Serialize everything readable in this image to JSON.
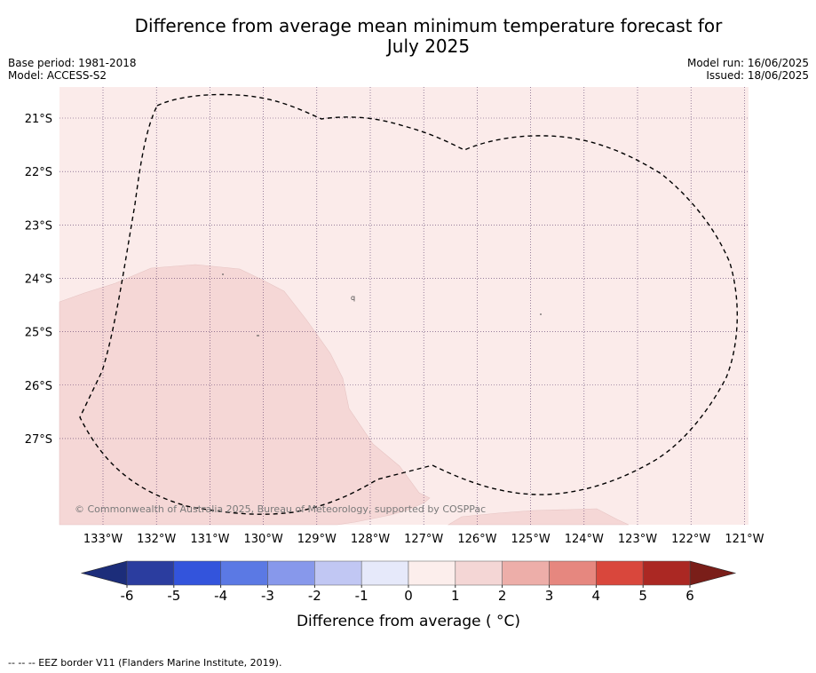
{
  "title": {
    "line1": "Difference from average mean minimum temperature forecast for",
    "line2": "July 2025"
  },
  "meta_left": {
    "base_period": "Base period: 1981-2018",
    "model": "Model: ACCESS-S2"
  },
  "meta_right": {
    "model_run": "Model run: 16/06/2025",
    "issued": "Issued: 18/06/2025"
  },
  "map": {
    "lon_ticks": [
      "133°W",
      "132°W",
      "131°W",
      "130°W",
      "129°W",
      "128°W",
      "127°W",
      "126°W",
      "125°W",
      "124°W",
      "123°W",
      "122°W",
      "121°W"
    ],
    "lat_ticks": [
      "21°S",
      "22°S",
      "23°S",
      "24°S",
      "25°S",
      "26°S",
      "27°S"
    ],
    "lon_values": [
      -133,
      -132,
      -131,
      -130,
      -129,
      -128,
      -127,
      -126,
      -125,
      -124,
      -123,
      -122,
      -121
    ],
    "lat_values": [
      -21,
      -22,
      -23,
      -24,
      -25,
      -26,
      -27
    ],
    "copyright": "© Commonwealth of Australia 2025, Bureau of Meteorology, supported by COSPPac",
    "region_colors": {
      "base_1_to_2": "#fbebea",
      "warmer_2_to_3": "#f5d7d6"
    }
  },
  "colorbar": {
    "ticks": [
      "-6",
      "-5",
      "-4",
      "-3",
      "-2",
      "-1",
      "0",
      "1",
      "2",
      "3",
      "4",
      "5",
      "6"
    ],
    "tick_values": [
      -6,
      -5,
      -4,
      -3,
      -2,
      -1,
      0,
      1,
      2,
      3,
      4,
      5,
      6
    ],
    "colors": [
      "#2b3d9f",
      "#3354dc",
      "#5b79e4",
      "#8798eb",
      "#c1c7f3",
      "#e6e9fa",
      "#fceeec",
      "#f4d6d5",
      "#edaea9",
      "#e6877f",
      "#d9473c",
      "#ab2823"
    ],
    "under_color": "#1c2d7a",
    "over_color": "#7a1e19",
    "label": "Difference from average ( °C)"
  },
  "footer": {
    "legend": "--  --  -- EEZ border V11 (Flanders Marine Institute, 2019)."
  }
}
